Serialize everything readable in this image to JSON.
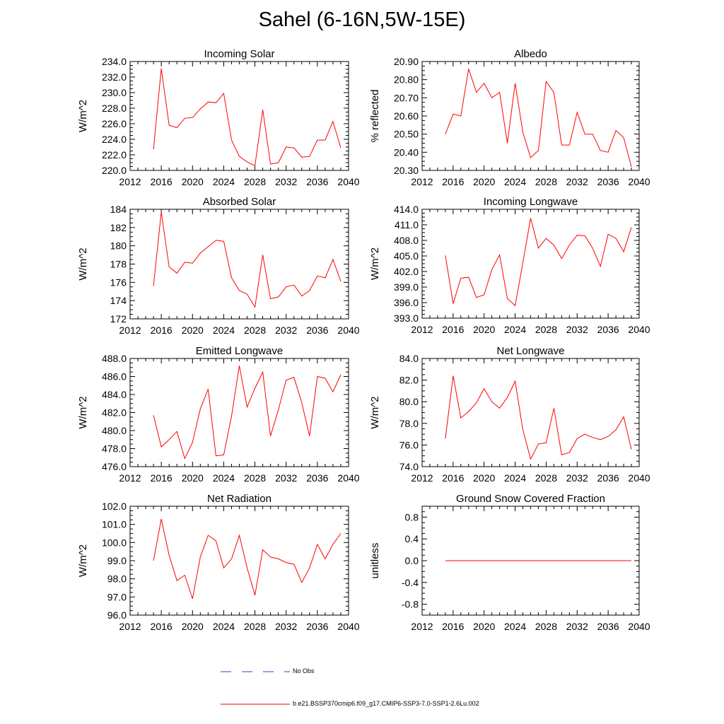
{
  "title": "Sahel (6-16N,5W-15E)",
  "colors": {
    "model": "#ff0000",
    "obs": "#3a3ad0",
    "axis": "#000000"
  },
  "legend": [
    {
      "label": "No Obs",
      "style": "dashed",
      "color": "#3a3ad0"
    },
    {
      "label": "b.e21.BSSP370cmip6.f09_g17.CMIP6-SSP3-7.0-SSP1-2.6Lu.002",
      "style": "solid",
      "color": "#ff0000"
    }
  ],
  "chart_data": [
    {
      "type": "line",
      "title": "Incoming Solar",
      "ylabel": "W/m^2",
      "xlim": [
        2012,
        2040
      ],
      "ylim": [
        220,
        234
      ],
      "xticks": [
        "2012",
        "2016",
        "2020",
        "2024",
        "2028",
        "2032",
        "2036",
        "2040"
      ],
      "yticks": [
        "220.0",
        "222.0",
        "224.0",
        "226.0",
        "228.0",
        "230.0",
        "232.0",
        "234.0"
      ],
      "x": [
        2015,
        2016,
        2017,
        2018,
        2019,
        2020,
        2021,
        2022,
        2023,
        2024,
        2025,
        2026,
        2027,
        2028,
        2029,
        2030,
        2031,
        2032,
        2033,
        2034,
        2035,
        2036,
        2037,
        2038,
        2039
      ],
      "values": [
        222.7,
        233.1,
        225.8,
        225.5,
        226.7,
        226.8,
        227.9,
        228.8,
        228.7,
        229.9,
        223.9,
        221.8,
        221.1,
        220.6,
        227.8,
        220.8,
        221.0,
        223.0,
        222.9,
        221.7,
        221.8,
        223.9,
        223.9,
        226.3,
        222.9
      ]
    },
    {
      "type": "line",
      "title": "Albedo",
      "ylabel": "% reflected",
      "xlim": [
        2012,
        2040
      ],
      "ylim": [
        20.3,
        20.9
      ],
      "xticks": [
        "2012",
        "2016",
        "2020",
        "2024",
        "2028",
        "2032",
        "2036",
        "2040"
      ],
      "yticks": [
        "20.30",
        "20.40",
        "20.50",
        "20.60",
        "20.70",
        "20.80",
        "20.90"
      ],
      "x": [
        2015,
        2016,
        2017,
        2018,
        2019,
        2020,
        2021,
        2022,
        2023,
        2024,
        2025,
        2026,
        2027,
        2028,
        2029,
        2030,
        2031,
        2032,
        2033,
        2034,
        2035,
        2036,
        2037,
        2038,
        2039
      ],
      "values": [
        20.5,
        20.61,
        20.6,
        20.86,
        20.73,
        20.78,
        20.7,
        20.73,
        20.45,
        20.78,
        20.51,
        20.37,
        20.41,
        20.79,
        20.73,
        20.44,
        20.44,
        20.62,
        20.5,
        20.5,
        20.41,
        20.4,
        20.52,
        20.48,
        20.32
      ]
    },
    {
      "type": "line",
      "title": "Absorbed Solar",
      "ylabel": "W/m^2",
      "xlim": [
        2012,
        2040
      ],
      "ylim": [
        172,
        184
      ],
      "xticks": [
        "2012",
        "2016",
        "2020",
        "2024",
        "2028",
        "2032",
        "2036",
        "2040"
      ],
      "yticks": [
        "172",
        "174",
        "176",
        "178",
        "180",
        "182",
        "184"
      ],
      "x": [
        2015,
        2016,
        2017,
        2018,
        2019,
        2020,
        2021,
        2022,
        2023,
        2024,
        2025,
        2026,
        2027,
        2028,
        2029,
        2030,
        2031,
        2032,
        2033,
        2034,
        2035,
        2036,
        2037,
        2038,
        2039
      ],
      "values": [
        175.6,
        183.7,
        177.7,
        177.0,
        178.2,
        178.1,
        179.2,
        179.9,
        180.6,
        180.5,
        176.5,
        175.1,
        174.7,
        173.3,
        179.0,
        174.2,
        174.4,
        175.5,
        175.7,
        174.5,
        175.1,
        176.7,
        176.5,
        178.5,
        176.1
      ]
    },
    {
      "type": "line",
      "title": "Incoming Longwave",
      "ylabel": "W/m^2",
      "xlim": [
        2012,
        2040
      ],
      "ylim": [
        393,
        414
      ],
      "xticks": [
        "2012",
        "2016",
        "2020",
        "2024",
        "2028",
        "2032",
        "2036",
        "2040"
      ],
      "yticks": [
        "393.0",
        "396.0",
        "399.0",
        "402.0",
        "405.0",
        "408.0",
        "411.0",
        "414.0"
      ],
      "x": [
        2015,
        2016,
        2017,
        2018,
        2019,
        2020,
        2021,
        2022,
        2023,
        2024,
        2025,
        2026,
        2027,
        2028,
        2029,
        2030,
        2031,
        2032,
        2033,
        2034,
        2035,
        2036,
        2037,
        2038,
        2039
      ],
      "values": [
        405.1,
        395.8,
        400.7,
        400.9,
        397.0,
        397.5,
        402.4,
        405.2,
        396.8,
        395.4,
        403.7,
        412.3,
        406.5,
        408.4,
        407.1,
        404.5,
        407.1,
        409.0,
        408.9,
        406.5,
        403.0,
        409.2,
        408.4,
        405.8,
        410.5
      ]
    },
    {
      "type": "line",
      "title": "Emitted Longwave",
      "ylabel": "W/m^2",
      "xlim": [
        2012,
        2040
      ],
      "ylim": [
        476,
        488
      ],
      "xticks": [
        "2012",
        "2016",
        "2020",
        "2024",
        "2028",
        "2032",
        "2036",
        "2040"
      ],
      "yticks": [
        "476.0",
        "478.0",
        "480.0",
        "482.0",
        "484.0",
        "486.0",
        "488.0"
      ],
      "x": [
        2015,
        2016,
        2017,
        2018,
        2019,
        2020,
        2021,
        2022,
        2023,
        2024,
        2025,
        2026,
        2027,
        2028,
        2029,
        2030,
        2031,
        2032,
        2033,
        2034,
        2035,
        2036,
        2037,
        2038,
        2039
      ],
      "values": [
        481.7,
        478.2,
        479.0,
        479.9,
        476.9,
        478.7,
        482.4,
        484.6,
        477.2,
        477.3,
        481.6,
        487.2,
        482.6,
        484.7,
        486.5,
        479.4,
        482.3,
        485.6,
        485.9,
        483.1,
        479.4,
        486.0,
        485.8,
        484.3,
        486.2
      ]
    },
    {
      "type": "line",
      "title": "Net Longwave",
      "ylabel": "W/m^2",
      "xlim": [
        2012,
        2040
      ],
      "ylim": [
        74,
        84
      ],
      "xticks": [
        "2012",
        "2016",
        "2020",
        "2024",
        "2028",
        "2032",
        "2036",
        "2040"
      ],
      "yticks": [
        "74.0",
        "76.0",
        "78.0",
        "80.0",
        "82.0",
        "84.0"
      ],
      "x": [
        2015,
        2016,
        2017,
        2018,
        2019,
        2020,
        2021,
        2022,
        2023,
        2024,
        2025,
        2026,
        2027,
        2028,
        2029,
        2030,
        2031,
        2032,
        2033,
        2034,
        2035,
        2036,
        2037,
        2038,
        2039
      ],
      "values": [
        76.6,
        82.4,
        78.5,
        79.1,
        79.9,
        81.2,
        80.0,
        79.4,
        80.4,
        81.9,
        77.4,
        74.7,
        76.1,
        76.2,
        79.4,
        75.1,
        75.3,
        76.6,
        77.0,
        76.7,
        76.5,
        76.8,
        77.4,
        78.6,
        75.6
      ]
    },
    {
      "type": "line",
      "title": "Net Radiation",
      "ylabel": "W/m^2",
      "xlim": [
        2012,
        2040
      ],
      "ylim": [
        96,
        102
      ],
      "xticks": [
        "2012",
        "2016",
        "2020",
        "2024",
        "2028",
        "2032",
        "2036",
        "2040"
      ],
      "yticks": [
        "96.0",
        "97.0",
        "98.0",
        "99.0",
        "100.0",
        "101.0",
        "102.0"
      ],
      "x": [
        2015,
        2016,
        2017,
        2018,
        2019,
        2020,
        2021,
        2022,
        2023,
        2024,
        2025,
        2026,
        2027,
        2028,
        2029,
        2030,
        2031,
        2032,
        2033,
        2034,
        2035,
        2036,
        2037,
        2038,
        2039
      ],
      "values": [
        99.0,
        101.3,
        99.3,
        97.9,
        98.2,
        96.9,
        99.2,
        100.4,
        100.1,
        98.6,
        99.1,
        100.4,
        98.6,
        97.1,
        99.6,
        99.2,
        99.1,
        98.9,
        98.8,
        97.8,
        98.6,
        99.9,
        99.1,
        99.9,
        100.5
      ]
    },
    {
      "type": "line",
      "title": "Ground Snow Covered Fraction",
      "ylabel": "unitless",
      "xlim": [
        2012,
        2040
      ],
      "ylim": [
        -1,
        1
      ],
      "xticks": [
        "2012",
        "2016",
        "2020",
        "2024",
        "2028",
        "2032",
        "2036",
        "2040"
      ],
      "yticks": [
        "-0.8",
        "-0.4",
        "0.0",
        "0.4",
        "0.8"
      ],
      "x": [
        2015,
        2016,
        2017,
        2018,
        2019,
        2020,
        2021,
        2022,
        2023,
        2024,
        2025,
        2026,
        2027,
        2028,
        2029,
        2030,
        2031,
        2032,
        2033,
        2034,
        2035,
        2036,
        2037,
        2038,
        2039
      ],
      "values": [
        0,
        0,
        0,
        0,
        0,
        0,
        0,
        0,
        0,
        0,
        0,
        0,
        0,
        0,
        0,
        0,
        0,
        0,
        0,
        0,
        0,
        0,
        0,
        0,
        0
      ]
    }
  ]
}
